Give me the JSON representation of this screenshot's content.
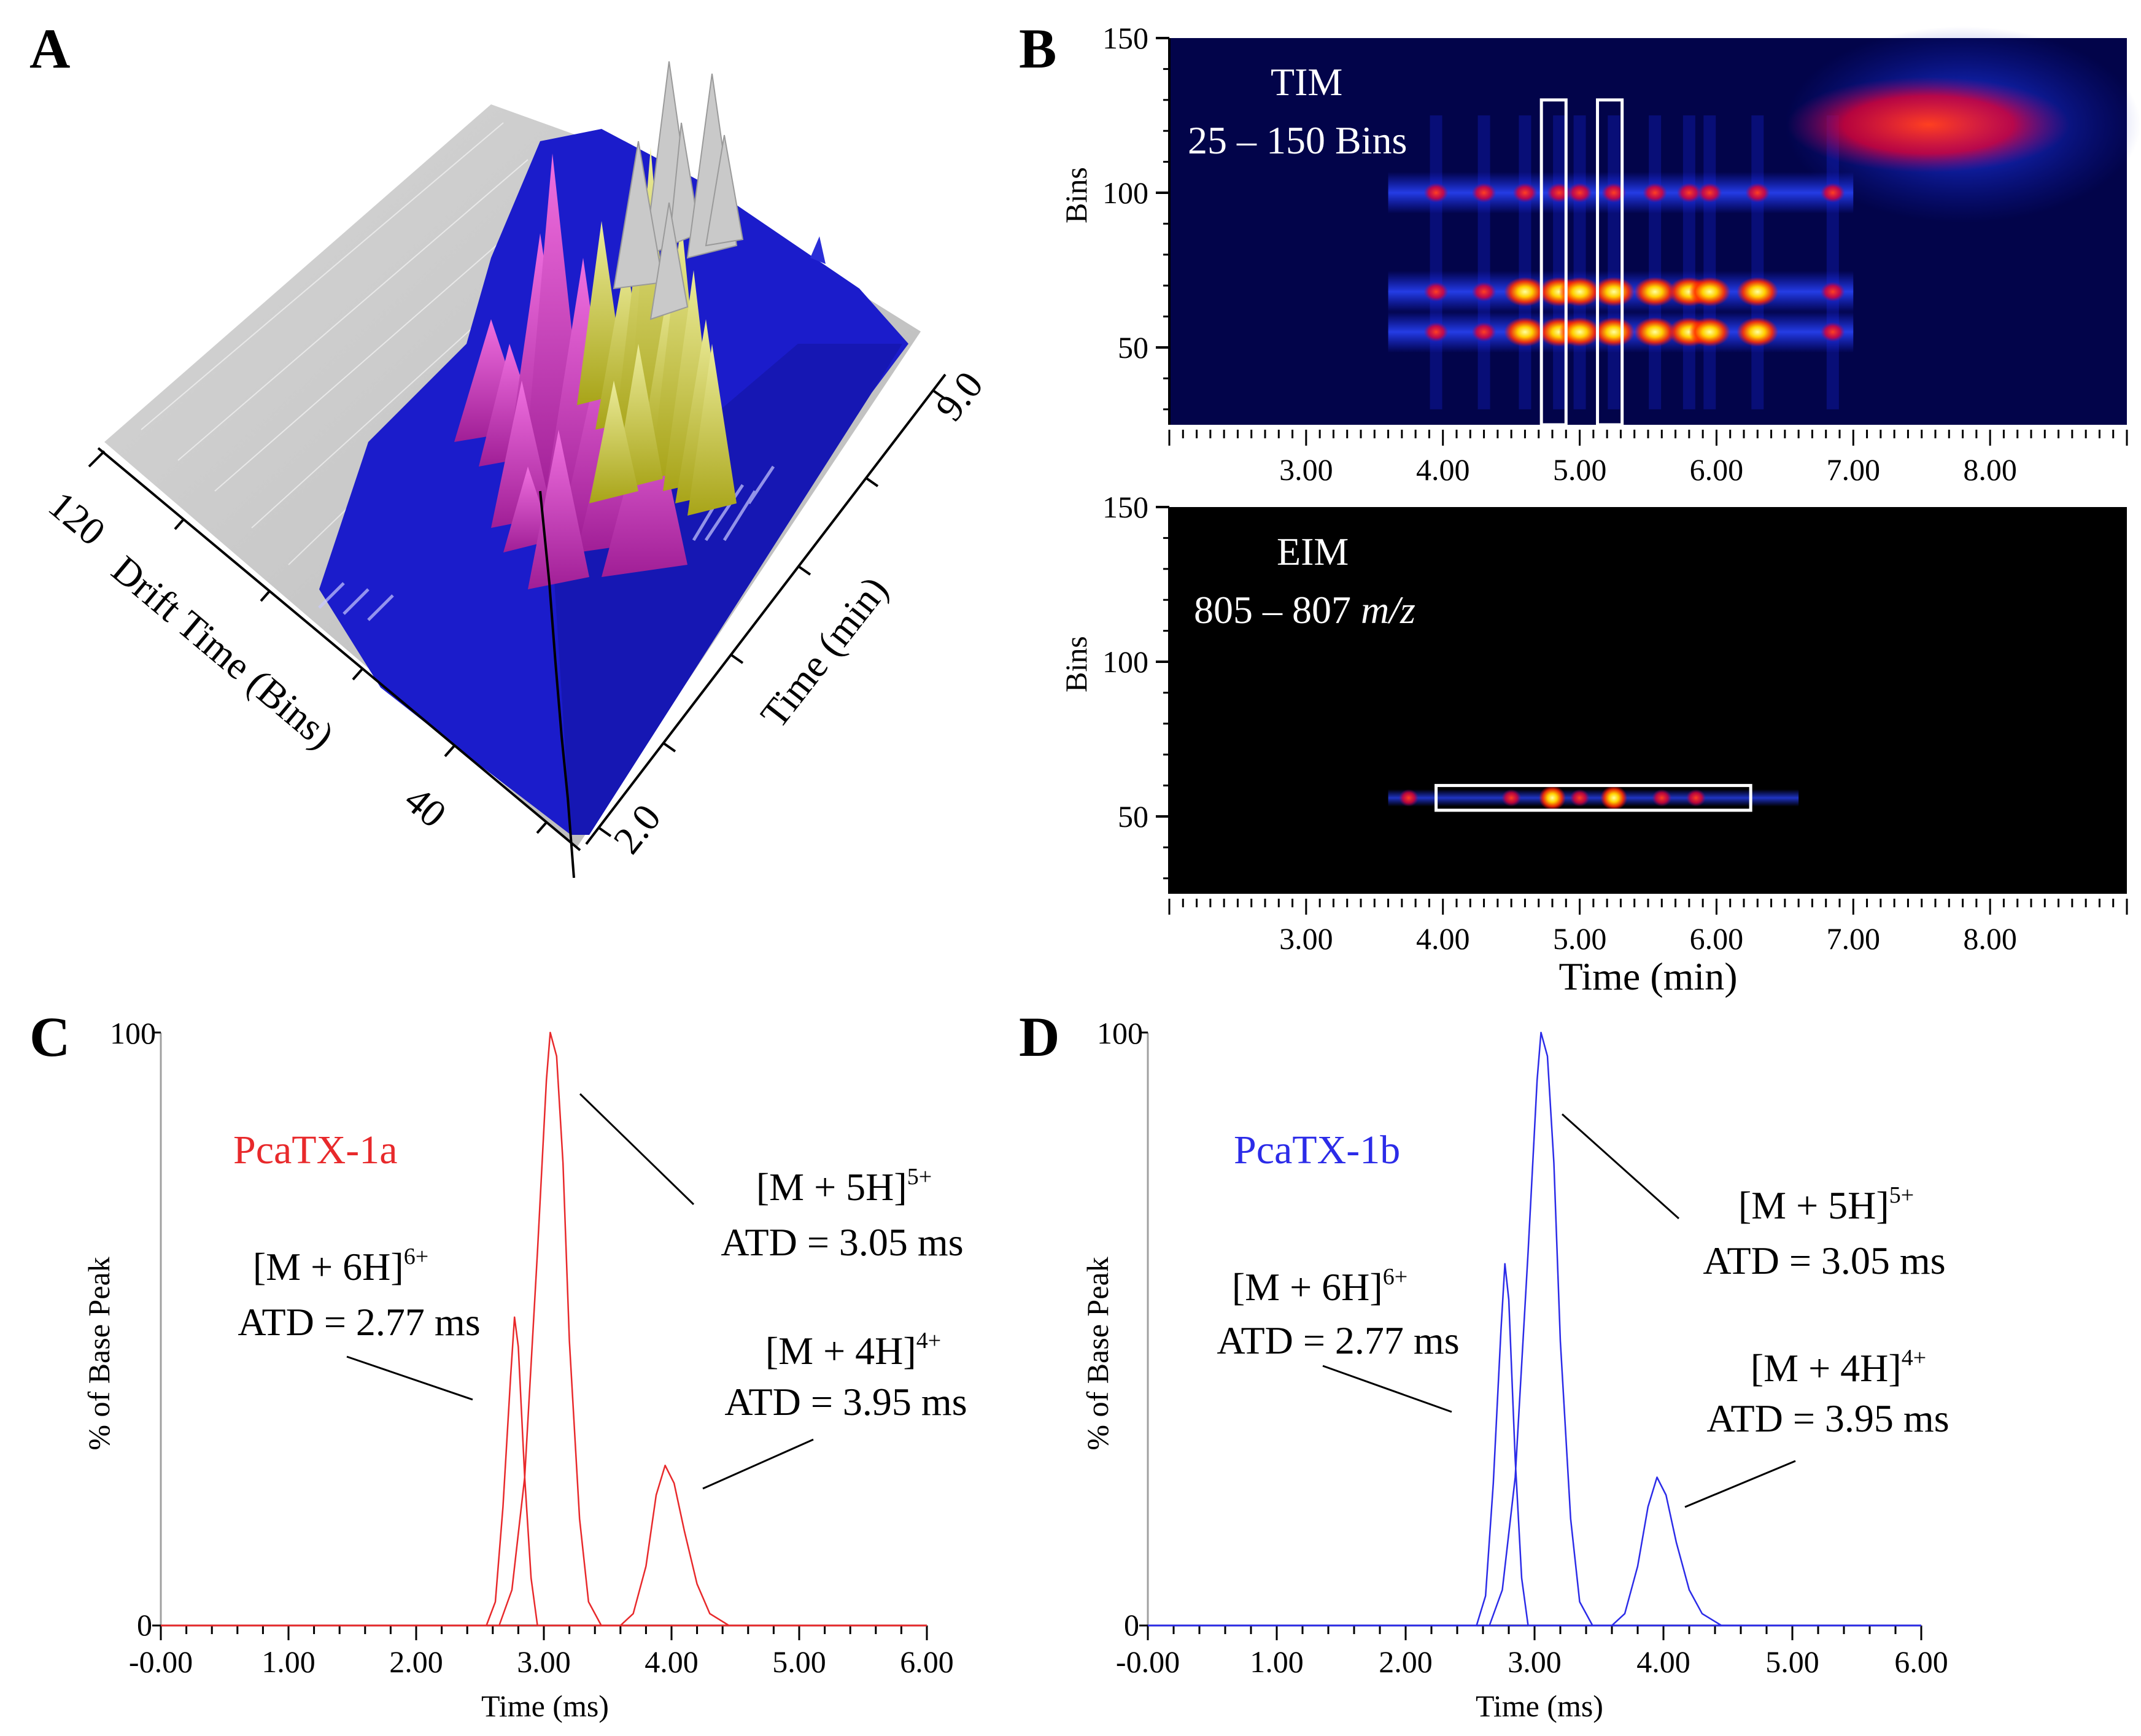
{
  "colors": {
    "pca_1a": "#e8292b",
    "pca_1b": "#2b2be8",
    "heatmap_bg_tim": "#02044a",
    "heatmap_bg_eim": "#000000",
    "surface_blue": "#1b1ccb",
    "surface_magenta": "#c23ab6",
    "surface_yellow": "#c9c62e",
    "surface_gray": "#c9c9c9"
  },
  "panel_a": {
    "letter": "A",
    "x_axis_label": "Drift Time (Bins)",
    "x_ticks": [
      "120",
      "40"
    ],
    "y_axis_label": "Time (min)",
    "y_ticks": [
      "9.0",
      "2.0"
    ]
  },
  "panel_b": {
    "letter": "B",
    "tim": {
      "title_line1": "TIM",
      "title_line2": "25 – 150 Bins",
      "y_label": "Bins",
      "y_ticks": [
        "150",
        "100",
        "50"
      ],
      "x_ticks": [
        "3.00",
        "4.00",
        "5.00",
        "6.00",
        "7.00",
        "8.00"
      ]
    },
    "eim": {
      "title_line1": "EIM",
      "title_range": "805 – 807",
      "title_unit": "m/z",
      "y_label": "Bins",
      "y_ticks": [
        "150",
        "100",
        "50"
      ],
      "x_ticks": [
        "3.00",
        "4.00",
        "5.00",
        "6.00",
        "7.00",
        "8.00"
      ],
      "x_label": "Time (min)"
    }
  },
  "panel_c": {
    "letter": "C",
    "legend": "PcaTX-1a",
    "y_label": "% of Base Peak",
    "x_label": "Time (ms)",
    "ann": [
      {
        "ion": "[M + 5H]",
        "charge": "5+",
        "atd": "ATD = 3.05 ms"
      },
      {
        "ion": "[M + 6H]",
        "charge": "6+",
        "atd": "ATD = 2.77 ms"
      },
      {
        "ion": "[M + 4H]",
        "charge": "4+",
        "atd": "ATD = 3.95 ms"
      }
    ]
  },
  "panel_d": {
    "letter": "D",
    "legend": "PcaTX-1b",
    "y_label": "% of Base Peak",
    "x_label": "Time (ms)",
    "ann": [
      {
        "ion": "[M + 5H]",
        "charge": "5+",
        "atd": "ATD = 3.05 ms"
      },
      {
        "ion": "[M + 6H]",
        "charge": "6+",
        "atd": "ATD = 2.77 ms"
      },
      {
        "ion": "[M + 4H]",
        "charge": "4+",
        "atd": "ATD = 3.95 ms"
      }
    ]
  },
  "chart_data": [
    {
      "id": "A",
      "type": "surface3d",
      "title": "",
      "xlabel": "Drift Time (Bins)",
      "ylabel": "Time (min)",
      "x_range": [
        25,
        150
      ],
      "y_range": [
        2.0,
        9.0
      ],
      "x_ticks": [
        120,
        40
      ],
      "y_ticks": [
        9.0,
        2.0
      ]
    },
    {
      "id": "B-TIM",
      "type": "heatmap",
      "title": "TIM 25 – 150 Bins",
      "xlabel": "",
      "ylabel": "Bins",
      "xlim": [
        2.0,
        9.0
      ],
      "ylim": [
        25,
        150
      ],
      "x_ticks": [
        3,
        4,
        5,
        6,
        7,
        8
      ],
      "y_ticks": [
        50,
        100,
        150
      ],
      "selection_windows": [
        {
          "x0": 4.72,
          "x1": 4.9,
          "y0": 25,
          "y1": 130
        },
        {
          "x0": 5.13,
          "x1": 5.31,
          "y0": 25,
          "y1": 130
        }
      ],
      "hotspot_rows_bins": [
        55,
        68,
        100,
        123
      ],
      "hotspot_times_min": [
        3.95,
        4.3,
        4.6,
        4.85,
        5.0,
        5.25,
        5.55,
        5.8,
        5.95,
        6.3,
        6.85
      ]
    },
    {
      "id": "B-EIM",
      "type": "heatmap",
      "title": "EIM 805 – 807 m/z",
      "xlabel": "Time (min)",
      "ylabel": "Bins",
      "xlim": [
        2.0,
        9.0
      ],
      "ylim": [
        25,
        150
      ],
      "x_ticks": [
        3,
        4,
        5,
        6,
        7,
        8
      ],
      "y_ticks": [
        50,
        100,
        150
      ],
      "selection_windows": [
        {
          "x0": 3.95,
          "x1": 6.25,
          "y0": 52,
          "y1": 60
        }
      ],
      "hotspot_row_bin": 56,
      "hotspot_times_min": [
        3.75,
        4.5,
        4.8,
        5.0,
        5.25,
        5.6,
        5.85
      ]
    },
    {
      "id": "C",
      "type": "line",
      "title": "",
      "xlabel": "Time (ms)",
      "ylabel": "% of Base Peak",
      "xlim": [
        0,
        6
      ],
      "ylim": [
        0,
        100
      ],
      "x_tick_labels": [
        "-0.00",
        "1.00",
        "2.00",
        "3.00",
        "4.00",
        "5.00",
        "6.00"
      ],
      "y_tick_labels": [
        "0",
        "100"
      ],
      "series": [
        {
          "name": "[M + 6H]6+",
          "x": [
            0,
            2.55,
            2.62,
            2.68,
            2.74,
            2.77,
            2.8,
            2.85,
            2.9,
            2.95,
            6
          ],
          "y": [
            0,
            0,
            4,
            20,
            42,
            52,
            47,
            25,
            8,
            0,
            0
          ]
        },
        {
          "name": "[M + 5H]5+",
          "x": [
            0,
            2.65,
            2.75,
            2.85,
            2.95,
            3.02,
            3.05,
            3.1,
            3.15,
            3.2,
            3.28,
            3.35,
            3.45,
            6
          ],
          "y": [
            0,
            0,
            6,
            25,
            63,
            92,
            100,
            96,
            78,
            48,
            18,
            4,
            0,
            0
          ]
        },
        {
          "name": "[M + 4H]4+",
          "x": [
            0,
            3.6,
            3.7,
            3.8,
            3.88,
            3.95,
            4.02,
            4.1,
            4.2,
            4.3,
            4.45,
            6
          ],
          "y": [
            0,
            0,
            2,
            10,
            22,
            27,
            24,
            16,
            7,
            2,
            0,
            0
          ]
        }
      ],
      "annotations": [
        "[M + 5H]5+ ATD = 3.05 ms",
        "[M + 6H]6+ ATD = 2.77 ms",
        "[M + 4H]4+ ATD = 3.95 ms"
      ]
    },
    {
      "id": "D",
      "type": "line",
      "title": "",
      "xlabel": "Time (ms)",
      "ylabel": "% of Base Peak",
      "xlim": [
        0,
        6
      ],
      "ylim": [
        0,
        100
      ],
      "x_tick_labels": [
        "-0.00",
        "1.00",
        "2.00",
        "3.00",
        "4.00",
        "5.00",
        "6.00"
      ],
      "y_tick_labels": [
        "0",
        "100"
      ],
      "series": [
        {
          "name": "[M + 6H]6+",
          "x": [
            0,
            2.55,
            2.62,
            2.68,
            2.74,
            2.77,
            2.8,
            2.85,
            2.9,
            2.95,
            6
          ],
          "y": [
            0,
            0,
            5,
            24,
            50,
            61,
            55,
            28,
            8,
            0,
            0
          ]
        },
        {
          "name": "[M + 5H]5+",
          "x": [
            0,
            2.65,
            2.75,
            2.85,
            2.95,
            3.02,
            3.05,
            3.1,
            3.15,
            3.2,
            3.28,
            3.35,
            3.45,
            6
          ],
          "y": [
            0,
            0,
            6,
            25,
            63,
            92,
            100,
            96,
            78,
            48,
            18,
            4,
            0,
            0
          ]
        },
        {
          "name": "[M + 4H]4+",
          "x": [
            0,
            3.6,
            3.7,
            3.8,
            3.88,
            3.95,
            4.02,
            4.1,
            4.2,
            4.3,
            4.45,
            6
          ],
          "y": [
            0,
            0,
            2,
            10,
            20,
            25,
            22,
            14,
            6,
            2,
            0,
            0
          ]
        }
      ],
      "annotations": [
        "[M + 5H]5+ ATD = 3.05 ms",
        "[M + 6H]6+ ATD = 2.77 ms",
        "[M + 4H]4+ ATD = 3.95 ms"
      ]
    }
  ]
}
